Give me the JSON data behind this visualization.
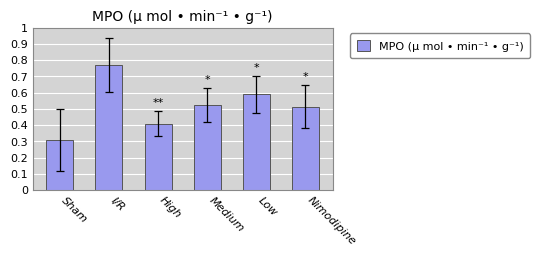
{
  "categories": [
    "Sham",
    "I/R",
    "High",
    "Medium",
    "Low",
    "Nimodipine"
  ],
  "values": [
    0.31,
    0.77,
    0.41,
    0.525,
    0.59,
    0.515
  ],
  "errors": [
    0.19,
    0.165,
    0.075,
    0.105,
    0.115,
    0.13
  ],
  "bar_color": "#9999ee",
  "bar_edgecolor": "#555555",
  "background_color": "#d4d4d4",
  "title": "MPO (μ mol • min⁻¹ • g⁻¹)",
  "ylim": [
    0,
    1.0
  ],
  "yticks": [
    0,
    0.1,
    0.2,
    0.3,
    0.4,
    0.5,
    0.6,
    0.7,
    0.8,
    0.9,
    1
  ],
  "legend_label": "MPO (μ mol • min⁻¹ • g⁻¹)",
  "significance": [
    "",
    "",
    "**",
    "*",
    "*",
    "*"
  ],
  "title_fontsize": 10,
  "tick_fontsize": 8,
  "legend_fontsize": 8,
  "bar_width": 0.55
}
